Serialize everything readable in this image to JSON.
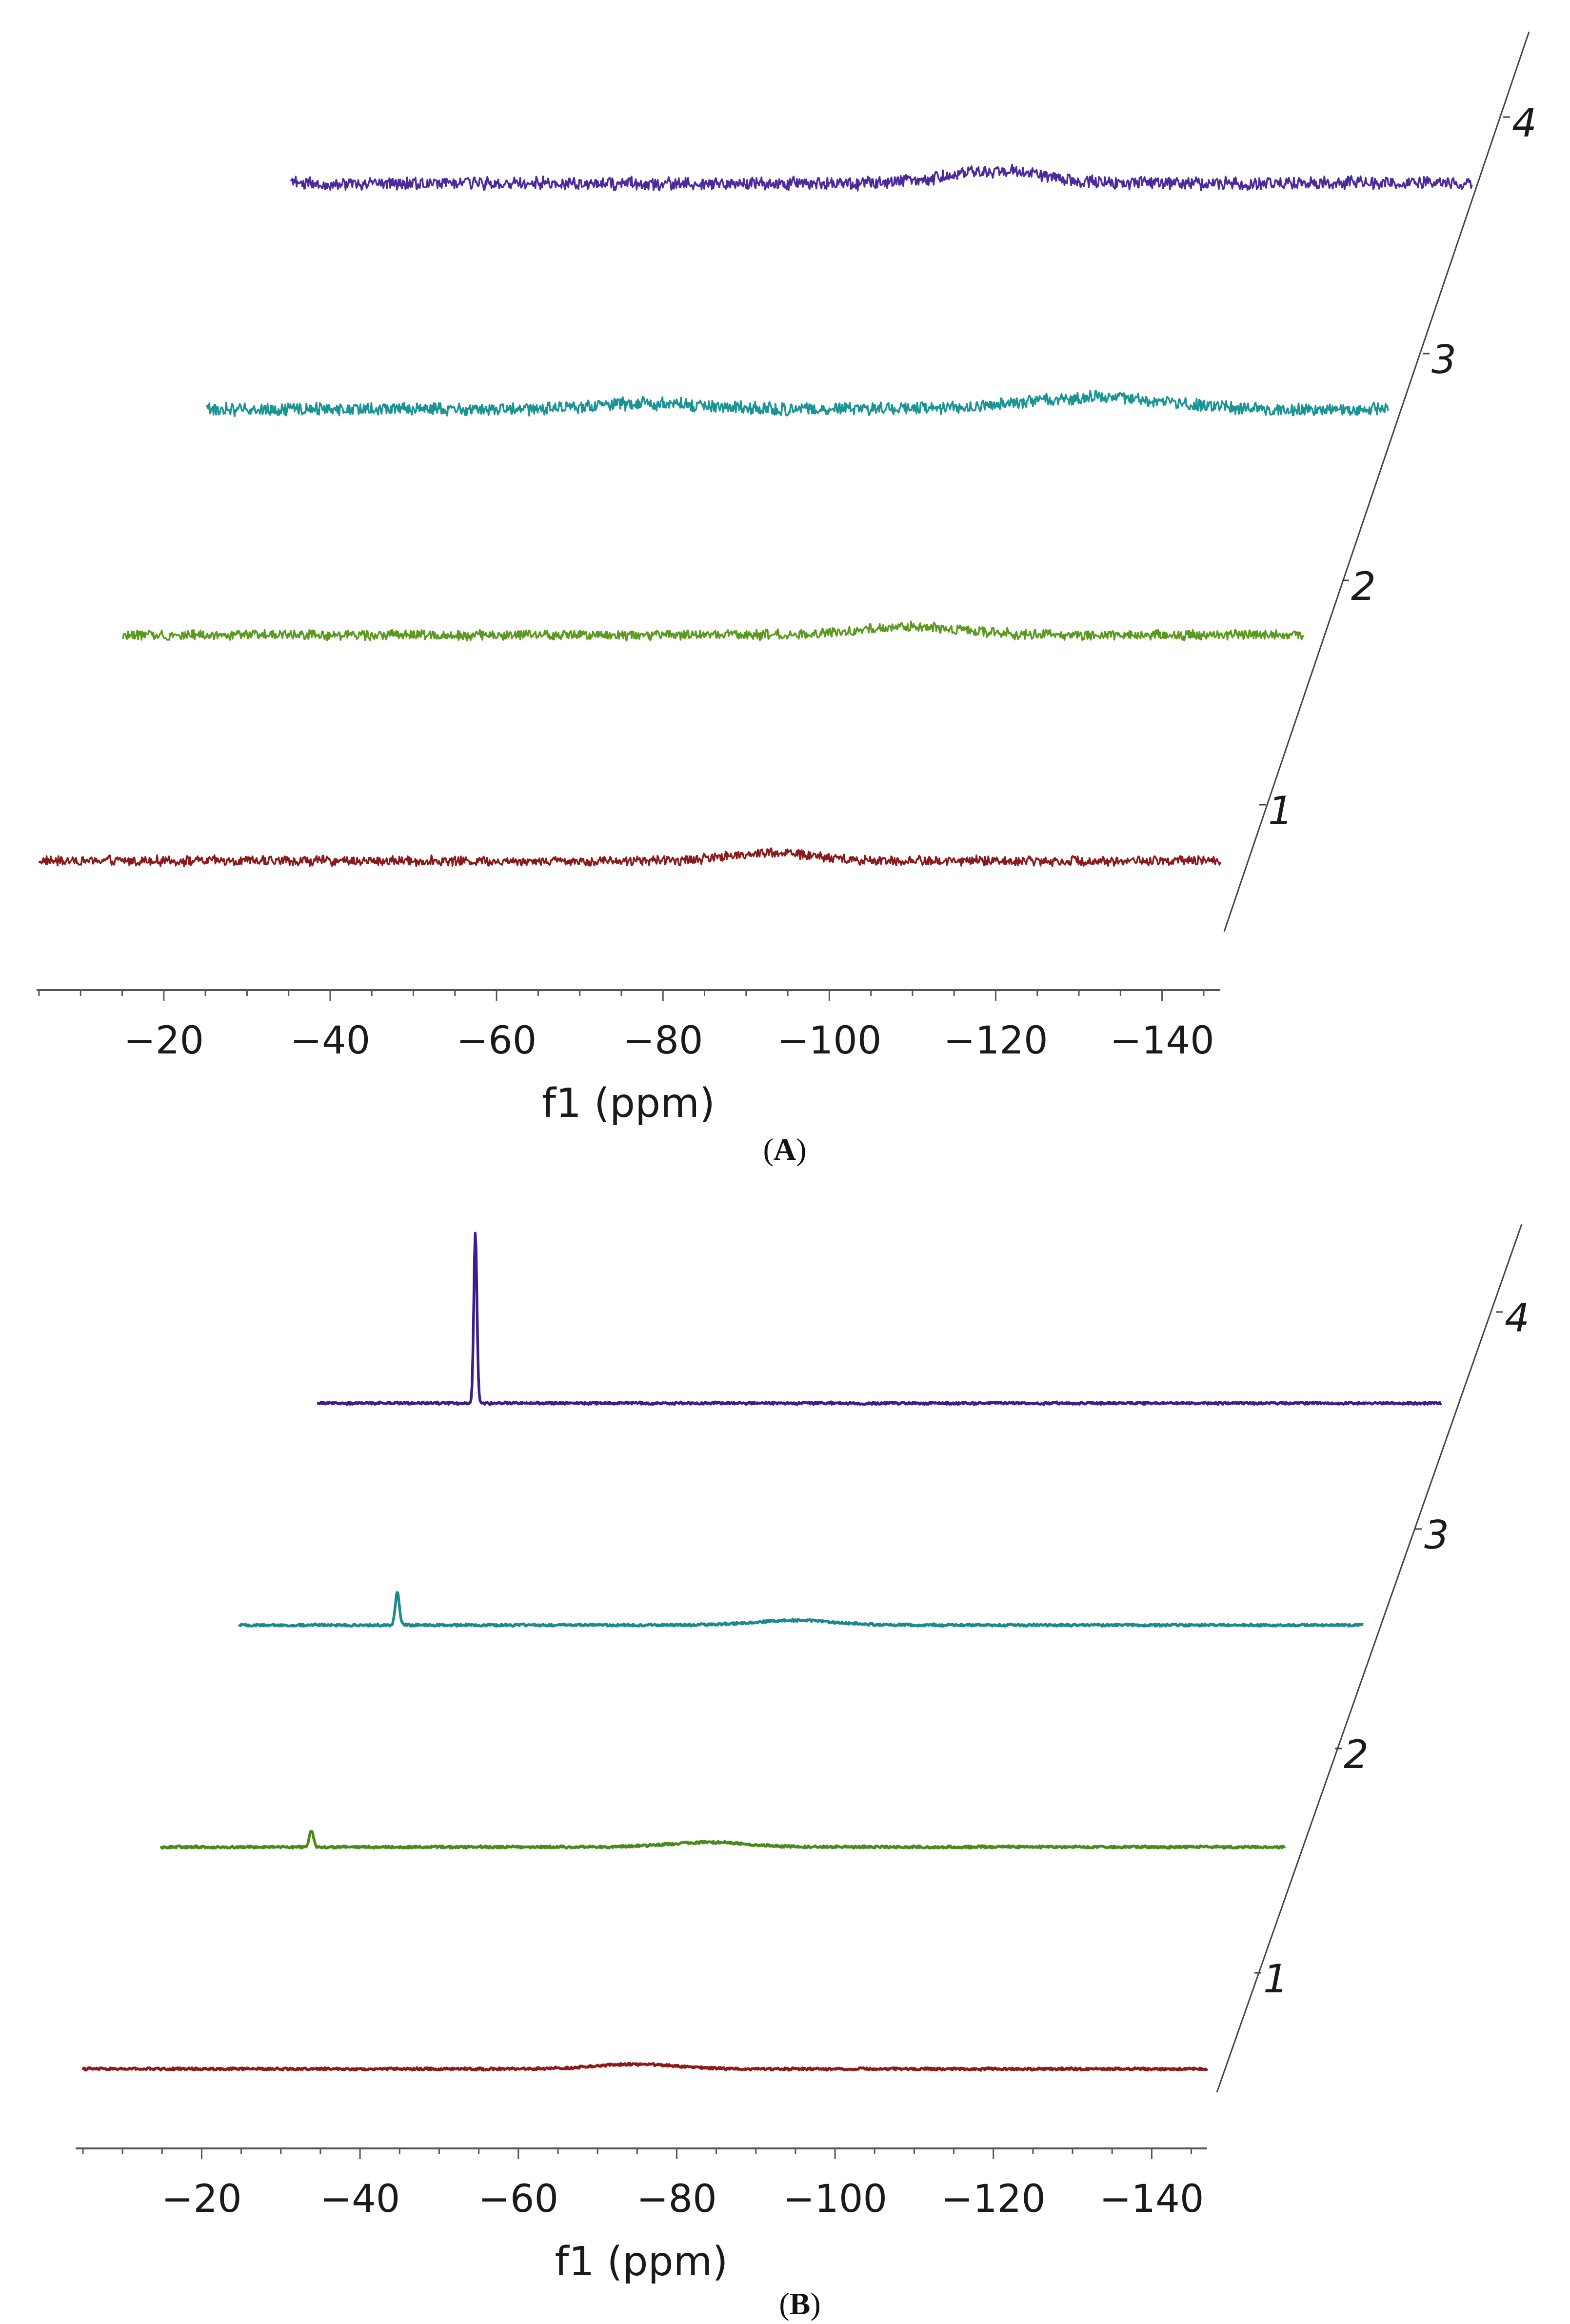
{
  "chart_data": [
    {
      "panel": "A",
      "type": "line",
      "xlabel": "f1 (ppm)",
      "x_ticks": [
        -20,
        -40,
        -60,
        -80,
        -100,
        -120,
        -140
      ],
      "xlim": [
        -5,
        -147
      ],
      "stack_labels": [
        "1",
        "2",
        "3",
        "4"
      ],
      "series": [
        {
          "stack": "1",
          "color": "#8b1a1a",
          "x_range": [
            -5,
            -147
          ],
          "noise": 0.32,
          "features": [
            {
              "x": -93,
              "amplitude": 0.6,
              "width": 5
            }
          ]
        },
        {
          "stack": "2",
          "color": "#5a9a1e",
          "x_range": [
            -5,
            -147
          ],
          "noise": 0.32,
          "features": [
            {
              "x": -100,
              "amplitude": 0.6,
              "width": 6
            }
          ]
        },
        {
          "stack": "3",
          "color": "#1a9494",
          "x_range": [
            -5,
            -147
          ],
          "noise": 0.42,
          "features": [
            {
              "x": -58,
              "amplitude": 0.45,
              "width": 6
            },
            {
              "x": -112,
              "amplitude": 0.9,
              "width": 8
            }
          ]
        },
        {
          "stack": "4",
          "color": "#4b2a9e",
          "x_range": [
            -5,
            -147
          ],
          "noise": 0.42,
          "features": [
            {
              "x": -90,
              "amplitude": 0.9,
              "width": 6
            }
          ]
        }
      ]
    },
    {
      "panel": "B",
      "type": "line",
      "xlabel": "f1 (ppm)",
      "x_ticks": [
        -20,
        -40,
        -60,
        -80,
        -100,
        -120,
        -140
      ],
      "xlim": [
        -5,
        -147
      ],
      "stack_labels": [
        "1",
        "2",
        "3",
        "4"
      ],
      "series": [
        {
          "stack": "1",
          "color": "#8b1a1a",
          "x_range": [
            -5,
            -147
          ],
          "noise": 0.08,
          "features": [
            {
              "x": -75,
              "amplitude": 0.35,
              "width": 5
            }
          ]
        },
        {
          "stack": "2",
          "color": "#4a8a1a",
          "x_range": [
            -5,
            -147
          ],
          "noise": 0.08,
          "features": [
            {
              "x": -24,
              "amplitude": 1.2,
              "width": 0.25
            },
            {
              "x": -74,
              "amplitude": 0.35,
              "width": 5
            }
          ]
        },
        {
          "stack": "3",
          "color": "#1a8a8a",
          "x_range": [
            -5,
            -147
          ],
          "noise": 0.08,
          "features": [
            {
              "x": -25,
              "amplitude": 2.4,
              "width": 0.25
            },
            {
              "x": -75,
              "amplitude": 0.35,
              "width": 5
            }
          ]
        },
        {
          "stack": "4",
          "color": "#3d1f8a",
          "x_range": [
            -5,
            -147
          ],
          "noise": 0.08,
          "features": [
            {
              "x": -25,
              "amplitude": 12.5,
              "width": 0.2
            }
          ]
        }
      ]
    }
  ],
  "captions": {
    "a_open": "(",
    "a_letter": "A",
    "a_close": ")",
    "b_open": "(",
    "b_letter": "B",
    "b_close": ")"
  }
}
